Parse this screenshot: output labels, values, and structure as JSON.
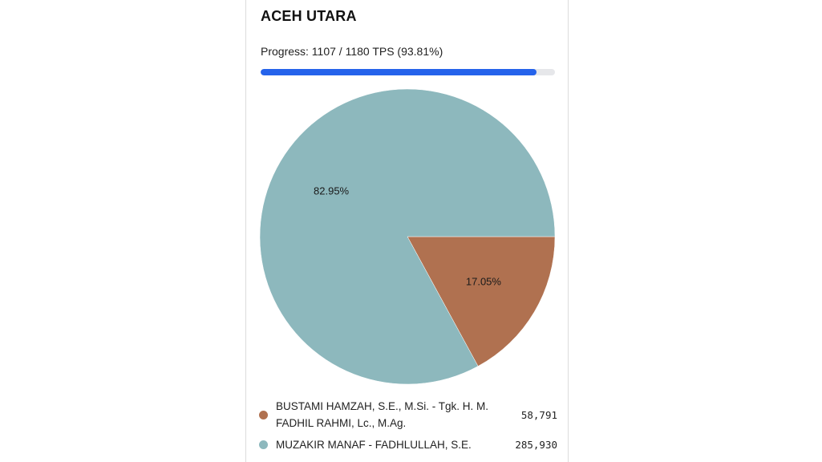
{
  "region": {
    "title": "ACEH UTARA"
  },
  "progress": {
    "label": "Progress: 1107 / 1180 TPS (93.81%)",
    "fraction": 0.9381,
    "fill_color": "#2563eb",
    "track_color": "#e6e7ea"
  },
  "chart_data": {
    "type": "pie",
    "slices": [
      {
        "name": "BUSTAMI HAMZAH, S.E., M.Si. - Tgk. H. M. FADHIL RAHMI, Lc., M.Ag.",
        "value": 58791,
        "value_label": "58,791",
        "percent_label": "17.05%",
        "color": "#b07150"
      },
      {
        "name": "MUZAKIR MANAF - FADHLULLAH, S.E.",
        "value": 285930,
        "value_label": "285,930",
        "percent_label": "82.95%",
        "color": "#8db8bd"
      }
    ],
    "legend_position": "bottom"
  }
}
